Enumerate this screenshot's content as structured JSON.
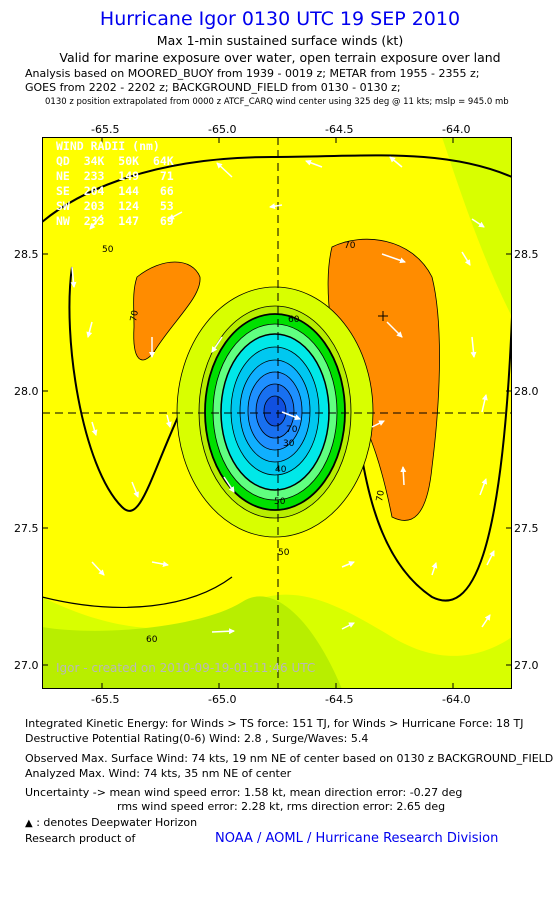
{
  "header": {
    "title": "Hurricane Igor 0130 UTC 19 SEP 2010",
    "subtitle1": "Max 1-min sustained surface winds (kt)",
    "subtitle2": "Valid for marine exposure over water, open terrain exposure over land",
    "analysis1": "Analysis based on MOORED_BUOY from 1939 - 0019 z; METAR from 1955 - 2355 z;",
    "analysis2": "GOES from 2202 - 2202 z; BACKGROUND_FIELD from 0130 - 0130 z;",
    "position_note": "0130 z position extrapolated from 0000 z ATCF_CARQ wind center using 325 deg @ 11 kts; mslp = 945.0 mb"
  },
  "axes": {
    "lon_ticks": [
      "-65.5",
      "-65.0",
      "-64.5",
      "-64.0"
    ],
    "lat_ticks": [
      "28.5",
      "28.0",
      "27.5",
      "27.0"
    ]
  },
  "wind_radii": {
    "header": "WIND RADII (nm)",
    "columns": "QD  34K  50K  64K",
    "rows": [
      "NE  233  149   71",
      "SE  204  144   66",
      "SW  203  124   53",
      "NW  233  147   69"
    ]
  },
  "contour_labels": [
    "70",
    "70",
    "60",
    "70",
    "50",
    "40",
    "30",
    "70",
    "50",
    "50",
    "60"
  ],
  "watermark": "Igor - created on 2010-09-19-01:11:46 UTC",
  "colors": {
    "title": "#0000ee",
    "fill_yellow": "#ffff00",
    "fill_orange": "#ff8c00",
    "fill_lime": "#d8ff00",
    "fill_green": "#00e000",
    "fill_cyan": "#00e8e8",
    "fill_blue": "#1e90ff"
  },
  "footer": {
    "ike": "Integrated Kinetic Energy:  for Winds > TS force: 151 TJ,  for Winds > Hurricane Force: 18 TJ",
    "dpr": "Destructive Potential Rating(0-6)   Wind: 2.8 , Surge/Waves: 5.4",
    "observed": "Observed Max. Surface Wind: 74 kts, 19 nm NE of center based on 0130 z BACKGROUND_FIELD",
    "analyzed": "Analyzed Max. Wind: 74 kts, 35 nm NE of center",
    "uncert1": "Uncertainty -> mean wind speed error: 1.58 kt,   mean direction error:  -0.27 deg",
    "uncert2": "rms wind speed error: 2.28 kt,   rms direction error: 2.65 deg",
    "deepwater": ": denotes Deepwater Horizon",
    "research": "Research product of",
    "credit": "NOAA / AOML / Hurricane Research Division"
  }
}
